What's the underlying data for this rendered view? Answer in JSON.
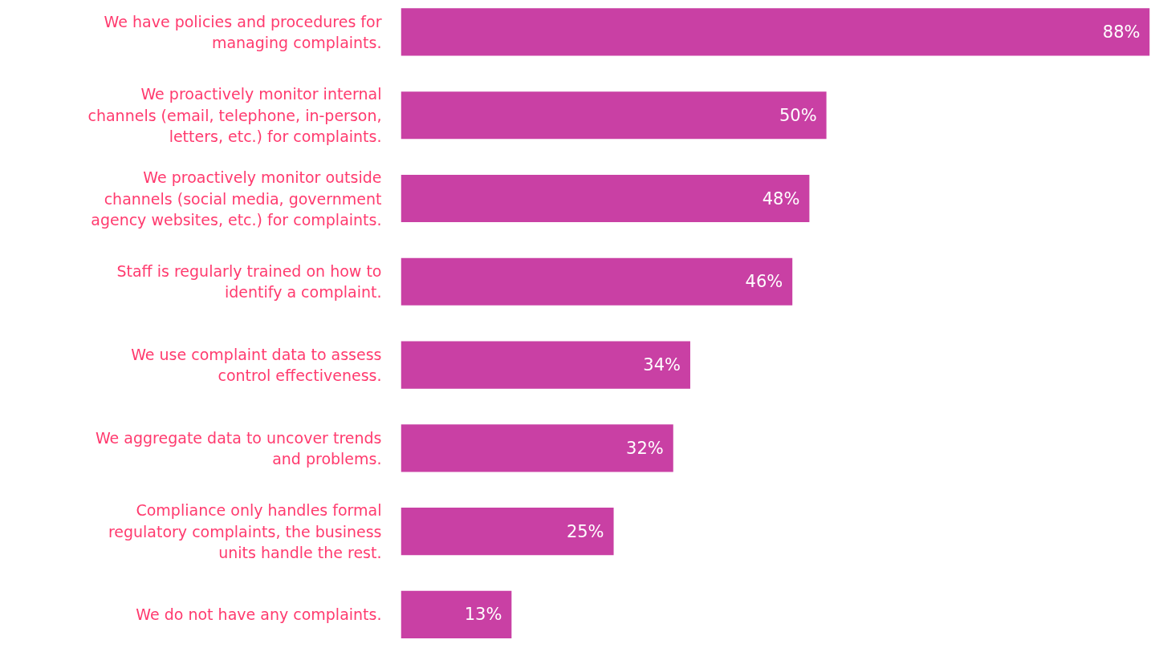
{
  "chart_data": {
    "type": "bar",
    "orientation": "horizontal",
    "categories": [
      "We have policies and procedures for managing complaints.",
      "We proactively monitor internal channels (email, telephone, in-person, letters, etc.) for complaints.",
      "We proactively monitor outside channels (social media, government agency websites, etc.) for complaints.",
      "Staff is regularly trained on how to identify a complaint.",
      "We use complaint data to assess control effectiveness.",
      "We aggregate data to uncover trends and problems.",
      "Compliance only handles formal regulatory complaints, the business units handle the rest.",
      "We do not have any complaints."
    ],
    "values": [
      88,
      50,
      48,
      46,
      34,
      32,
      25,
      13
    ],
    "value_labels": [
      "88%",
      "50%",
      "48%",
      "46%",
      "34%",
      "32%",
      "25%",
      "13%"
    ],
    "color": "#c940a4",
    "xlim": [
      0,
      88
    ],
    "tick_labels": "y",
    "grid": false
  }
}
